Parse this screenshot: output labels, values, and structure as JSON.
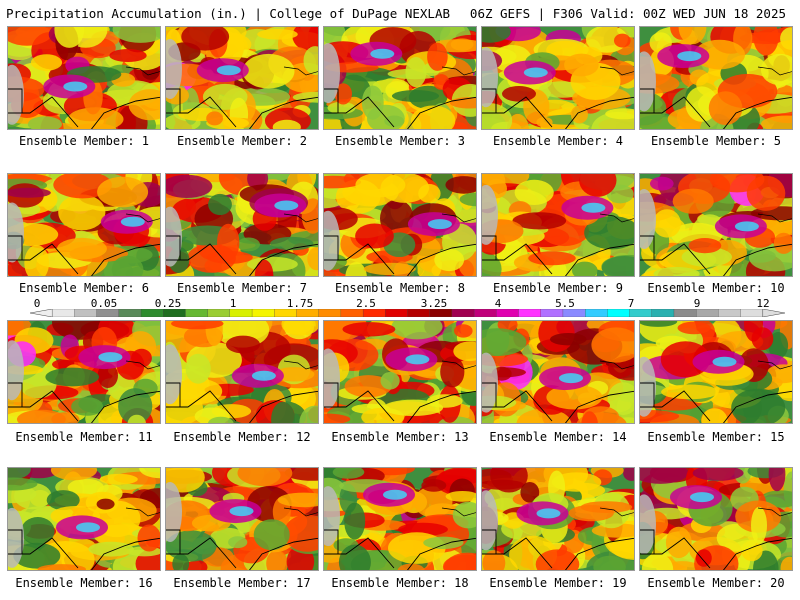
{
  "header": {
    "left": "Precipitation Accumulation (in.) | College of DuPage NEXLAB",
    "right": "06Z GEFS | F306 Valid: 00Z WED JUN 18 2025"
  },
  "colorbar": {
    "tick_labels": [
      "0",
      "0.05",
      "0.25",
      "1",
      "1.75",
      "2.5",
      "3.25",
      "4",
      "5.5",
      "7",
      "9",
      "12"
    ],
    "colors": [
      "#e8e8e8",
      "#c0c0c0",
      "#909090",
      "#5a8a5a",
      "#2e8b2e",
      "#1f6e1f",
      "#66b832",
      "#9acd32",
      "#d8f000",
      "#f5f500",
      "#ffd700",
      "#ffae00",
      "#ff8c00",
      "#ff6000",
      "#ff2a00",
      "#e00000",
      "#b40000",
      "#8b0000",
      "#a00050",
      "#c0007a",
      "#e000b0",
      "#ff33ff",
      "#b070ff",
      "#8a8aff",
      "#33ccff",
      "#00ffff",
      "#33cccc",
      "#2ab0b0",
      "#8c8c8c",
      "#a8a8a8",
      "#c8c8c8",
      "#dddddd"
    ]
  },
  "members": [
    {
      "label": "Ensemble Member: 1"
    },
    {
      "label": "Ensemble Member: 2"
    },
    {
      "label": "Ensemble Member: 3"
    },
    {
      "label": "Ensemble Member: 4"
    },
    {
      "label": "Ensemble Member: 5"
    },
    {
      "label": "Ensemble Member: 6"
    },
    {
      "label": "Ensemble Member: 7"
    },
    {
      "label": "Ensemble Member: 8"
    },
    {
      "label": "Ensemble Member: 9"
    },
    {
      "label": "Ensemble Member: 10"
    },
    {
      "label": "Ensemble Member: 11"
    },
    {
      "label": "Ensemble Member: 12"
    },
    {
      "label": "Ensemble Member: 13"
    },
    {
      "label": "Ensemble Member: 14"
    },
    {
      "label": "Ensemble Member: 15"
    },
    {
      "label": "Ensemble Member: 16"
    },
    {
      "label": "Ensemble Member: 17"
    },
    {
      "label": "Ensemble Member: 18"
    },
    {
      "label": "Ensemble Member: 19"
    },
    {
      "label": "Ensemble Member: 20"
    }
  ]
}
